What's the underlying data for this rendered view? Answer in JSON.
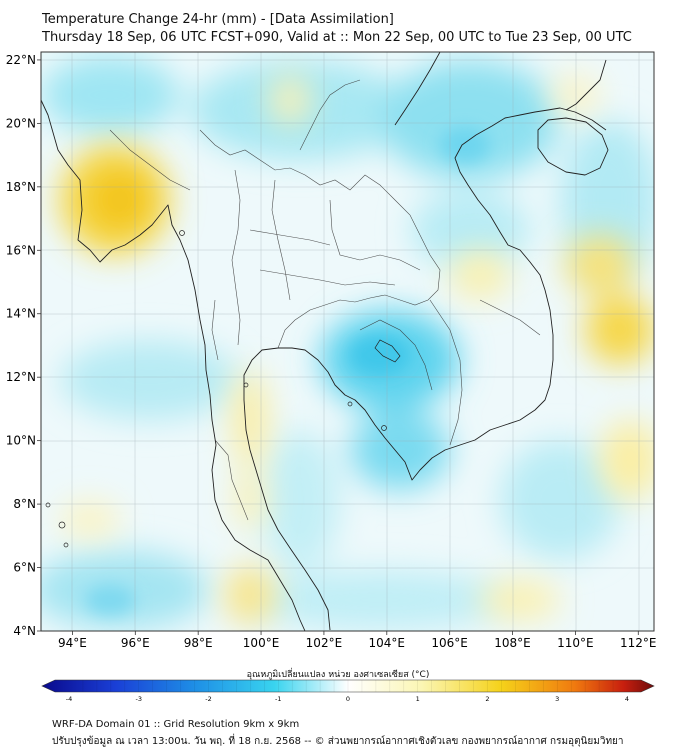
{
  "header": {
    "title": "Temperature Change 24-hr (mm) - [Data Assimilation]",
    "subtitle": "Thursday 18 Sep, 06 UTC FCST+090, Valid at :: Mon 22 Sep, 00 UTC to Tue 23 Sep, 00 UTC"
  },
  "axes": {
    "lat_ticks": [
      "22°N",
      "20°N",
      "18°N",
      "16°N",
      "14°N",
      "12°N",
      "10°N",
      "8°N",
      "6°N",
      "4°N"
    ],
    "lon_ticks": [
      "94°E",
      "96°E",
      "98°E",
      "100°E",
      "102°E",
      "104°E",
      "106°E",
      "108°E",
      "110°E",
      "112°E"
    ],
    "lat_range": [
      4,
      22.25
    ],
    "lon_range": [
      93,
      112.5
    ]
  },
  "colorbar": {
    "label": "อุณหภูมิเปลี่ยนแปลง หน่วย องศาเซลเซียส (°C)",
    "ticks": [
      "-4",
      "-3",
      "-2",
      "-1",
      "0",
      "1",
      "2",
      "3",
      "4"
    ],
    "range": [
      -4,
      4
    ],
    "colors": [
      "#0a0a8c",
      "#1a3fd6",
      "#1e8fe6",
      "#39d4ef",
      "#ffffff",
      "#fbf6b4",
      "#f5d21a",
      "#f07a0f",
      "#c81f0e",
      "#6e0c0c"
    ]
  },
  "footer": {
    "line1": "WRF-DA Domain 01 :: Grid Resolution 9km x 9km",
    "line2": "ปรับปรุงข้อมูล ณ เวลา 13:00น. วัน พฤ. ที่ 18 ก.ย. 2568 -- © ส่วนพยากรณ์อากาศเชิงตัวเลข กองพยากรณ์อากาศ กรมอุตุนิยมวิทยา"
  }
}
